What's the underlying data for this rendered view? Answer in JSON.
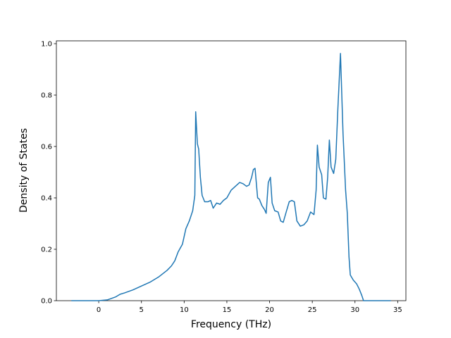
{
  "chart_data": {
    "type": "line",
    "xlabel": "Frequency (THz)",
    "ylabel": "Density of States",
    "x": [
      -3.2,
      0,
      1,
      2,
      2.5,
      3,
      4,
      5,
      6,
      7,
      8,
      8.5,
      8.9,
      9.3,
      9.8,
      10.2,
      10.6,
      11,
      11.25,
      11.35,
      11.55,
      11.7,
      11.9,
      12.1,
      12.4,
      12.8,
      13.1,
      13.4,
      13.8,
      14.2,
      14.6,
      15,
      15.5,
      16,
      16.5,
      16.9,
      17.3,
      17.6,
      17.9,
      18.1,
      18.3,
      18.6,
      18.8,
      19.1,
      19.4,
      19.6,
      19.85,
      20.1,
      20.3,
      20.6,
      21,
      21.3,
      21.6,
      21.9,
      22.3,
      22.6,
      22.9,
      23.2,
      23.6,
      24,
      24.4,
      24.8,
      25.2,
      25.45,
      25.6,
      25.8,
      26.1,
      26.3,
      26.6,
      26.8,
      27.0,
      27.2,
      27.5,
      27.75,
      28.0,
      28.3,
      28.6,
      28.9,
      29.1,
      29.3,
      29.45,
      29.8,
      30.2,
      30.5,
      30.8,
      31.0,
      34.2
    ],
    "series": [
      {
        "color": "#1f77b4",
        "values": [
          0,
          0,
          0.003,
          0.015,
          0.025,
          0.03,
          0.042,
          0.057,
          0.072,
          0.092,
          0.118,
          0.135,
          0.155,
          0.19,
          0.22,
          0.28,
          0.31,
          0.35,
          0.41,
          0.735,
          0.61,
          0.59,
          0.48,
          0.41,
          0.385,
          0.385,
          0.39,
          0.36,
          0.38,
          0.375,
          0.39,
          0.4,
          0.43,
          0.445,
          0.46,
          0.455,
          0.445,
          0.45,
          0.48,
          0.51,
          0.515,
          0.4,
          0.395,
          0.37,
          0.355,
          0.34,
          0.46,
          0.48,
          0.38,
          0.35,
          0.345,
          0.31,
          0.305,
          0.34,
          0.385,
          0.39,
          0.385,
          0.31,
          0.29,
          0.295,
          0.31,
          0.345,
          0.335,
          0.43,
          0.605,
          0.52,
          0.49,
          0.4,
          0.395,
          0.48,
          0.625,
          0.52,
          0.495,
          0.55,
          0.75,
          0.962,
          0.65,
          0.43,
          0.34,
          0.17,
          0.1,
          0.08,
          0.065,
          0.045,
          0.02,
          0,
          0
        ]
      }
    ],
    "xlim": [
      -4.96,
      35.96
    ],
    "ylim": [
      0,
      1.011
    ],
    "xticks": [
      0,
      5,
      10,
      15,
      20,
      25,
      30,
      35
    ],
    "yticks": [
      {
        "value": 0,
        "label": "0.0"
      },
      {
        "value": 0.2,
        "label": "0.2"
      },
      {
        "value": 0.4,
        "label": "0.4"
      },
      {
        "value": 0.6,
        "label": "0.6"
      },
      {
        "value": 0.8,
        "label": "0.8"
      },
      {
        "value": 1.0,
        "label": "1.0"
      }
    ],
    "grid": false
  }
}
